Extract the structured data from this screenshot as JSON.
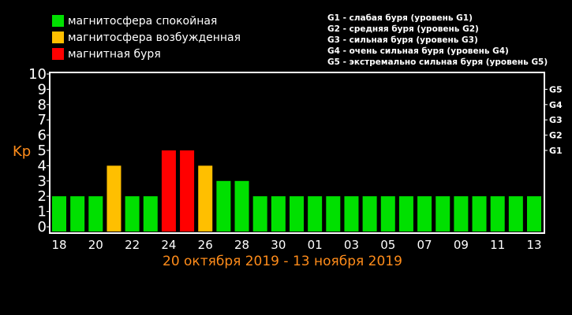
{
  "legend": {
    "items": [
      {
        "label": "магнитосфера спокойная",
        "color": "#00e000"
      },
      {
        "label": "магнитосфера возбужденная",
        "color": "#ffbf00"
      },
      {
        "label": "магнитная буря",
        "color": "#ff0000"
      }
    ]
  },
  "storm_key": [
    "G1 - слабая буря (уровень G1)",
    "G2 - средняя буря (уровень G2)",
    "G3 - сильная буря (уровень G3)",
    "G4 - очень сильная буря (уровень G4)",
    "G5 - экстремально сильная буря (уровень G5)"
  ],
  "date_range": "20 октября 2019 - 13 ноября 2019",
  "chart_data": {
    "type": "bar",
    "ylabel": "Kp",
    "ylim": [
      0,
      10
    ],
    "y_ticks": [
      0,
      1,
      2,
      3,
      4,
      5,
      6,
      7,
      8,
      9,
      10
    ],
    "right_axis_labels": [
      {
        "label": "G1",
        "value": 5
      },
      {
        "label": "G2",
        "value": 6
      },
      {
        "label": "G3",
        "value": 7
      },
      {
        "label": "G4",
        "value": 8
      },
      {
        "label": "G5",
        "value": 9
      }
    ],
    "x_tick_labels": [
      "18",
      "20",
      "22",
      "24",
      "26",
      "28",
      "30",
      "01",
      "03",
      "05",
      "07",
      "09",
      "11",
      "13"
    ],
    "bars": [
      {
        "value": 2,
        "level": "quiet"
      },
      {
        "value": 2,
        "level": "quiet"
      },
      {
        "value": 2,
        "level": "quiet"
      },
      {
        "value": 4,
        "level": "active"
      },
      {
        "value": 2,
        "level": "quiet"
      },
      {
        "value": 2,
        "level": "quiet"
      },
      {
        "value": 5,
        "level": "storm"
      },
      {
        "value": 5,
        "level": "storm"
      },
      {
        "value": 4,
        "level": "active"
      },
      {
        "value": 3,
        "level": "quiet"
      },
      {
        "value": 3,
        "level": "quiet"
      },
      {
        "value": 2,
        "level": "quiet"
      },
      {
        "value": 2,
        "level": "quiet"
      },
      {
        "value": 2,
        "level": "quiet"
      },
      {
        "value": 2,
        "level": "quiet"
      },
      {
        "value": 2,
        "level": "quiet"
      },
      {
        "value": 2,
        "level": "quiet"
      },
      {
        "value": 2,
        "level": "quiet"
      },
      {
        "value": 2,
        "level": "quiet"
      },
      {
        "value": 2,
        "level": "quiet"
      },
      {
        "value": 2,
        "level": "quiet"
      },
      {
        "value": 2,
        "level": "quiet"
      },
      {
        "value": 2,
        "level": "quiet"
      },
      {
        "value": 2,
        "level": "quiet"
      },
      {
        "value": 2,
        "level": "quiet"
      },
      {
        "value": 2,
        "level": "quiet"
      },
      {
        "value": 2,
        "level": "quiet"
      }
    ],
    "level_colors": {
      "quiet": "#00e000",
      "active": "#ffbf00",
      "storm": "#ff0000"
    },
    "grid": false
  }
}
